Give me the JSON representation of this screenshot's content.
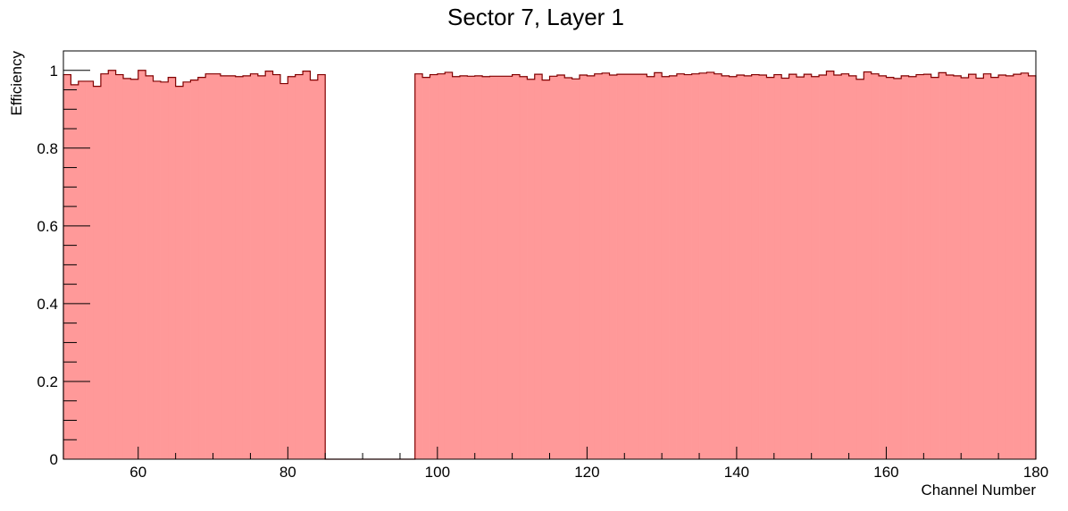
{
  "chart_data": {
    "type": "histogram",
    "title": "Sector 7, Layer 1",
    "xlabel": "Channel Number",
    "ylabel": "Efficiency",
    "color": "#ff9999",
    "edge_color": "#800000",
    "bins": [
      50,
      51,
      52,
      53,
      54,
      55,
      56,
      57,
      58,
      59,
      60,
      61,
      62,
      63,
      64,
      65,
      66,
      67,
      68,
      69,
      70,
      71,
      72,
      73,
      74,
      75,
      76,
      77,
      78,
      79,
      80,
      81,
      82,
      83,
      84,
      85,
      86,
      87,
      88,
      89,
      90,
      91,
      92,
      93,
      94,
      95,
      96,
      97,
      98,
      99,
      100,
      101,
      102,
      103,
      104,
      105,
      106,
      107,
      108,
      109,
      110,
      111,
      112,
      113,
      114,
      115,
      116,
      117,
      118,
      119,
      120,
      121,
      122,
      123,
      124,
      125,
      126,
      127,
      128,
      129,
      130,
      131,
      132,
      133,
      134,
      135,
      136,
      137,
      138,
      139,
      140,
      141,
      142,
      143,
      144,
      145,
      146,
      147,
      148,
      149,
      150,
      151,
      152,
      153,
      154,
      155,
      156,
      157,
      158,
      159,
      160,
      161,
      162,
      163,
      164,
      165,
      166,
      167,
      168,
      169,
      170,
      171,
      172,
      173,
      174,
      175,
      176,
      177,
      178,
      179,
      180
    ],
    "values": [
      0.989,
      0.963,
      0.972,
      0.972,
      0.959,
      0.991,
      1.0,
      0.989,
      0.979,
      0.977,
      1.0,
      0.986,
      0.972,
      0.97,
      0.982,
      0.959,
      0.97,
      0.975,
      0.982,
      0.991,
      0.991,
      0.986,
      0.986,
      0.984,
      0.986,
      0.991,
      0.986,
      0.998,
      0.989,
      0.966,
      0.984,
      0.989,
      0.998,
      0.975,
      0.989,
      0,
      0,
      0,
      0,
      0,
      0,
      0,
      0,
      0,
      0,
      0,
      0,
      0.991,
      0.982,
      0.989,
      0.991,
      0.995,
      0.984,
      0.986,
      0.985,
      0.986,
      0.984,
      0.985,
      0.985,
      0.985,
      0.989,
      0.984,
      0.977,
      0.99,
      0.975,
      0.985,
      0.988,
      0.981,
      0.978,
      0.988,
      0.986,
      0.991,
      0.993,
      0.988,
      0.99,
      0.99,
      0.99,
      0.99,
      0.984,
      0.994,
      0.984,
      0.986,
      0.991,
      0.989,
      0.991,
      0.993,
      0.995,
      0.991,
      0.986,
      0.984,
      0.988,
      0.986,
      0.989,
      0.988,
      0.982,
      0.989,
      0.98,
      0.99,
      0.983,
      0.99,
      0.984,
      0.988,
      0.998,
      0.988,
      0.991,
      0.986,
      0.977,
      0.996,
      0.991,
      0.986,
      0.982,
      0.979,
      0.986,
      0.984,
      0.989,
      0.99,
      0.982,
      0.994,
      0.988,
      0.986,
      0.981,
      0.99,
      0.98,
      0.991,
      0.982,
      0.988,
      0.986,
      0.99,
      0.993,
      0.986
    ],
    "xlim": [
      50,
      180
    ],
    "xticks": [
      60,
      80,
      100,
      120,
      140,
      160,
      180
    ],
    "ylim": [
      0,
      1.05
    ],
    "yticks": [
      0,
      0.2,
      0.4,
      0.6,
      0.8,
      1
    ]
  }
}
